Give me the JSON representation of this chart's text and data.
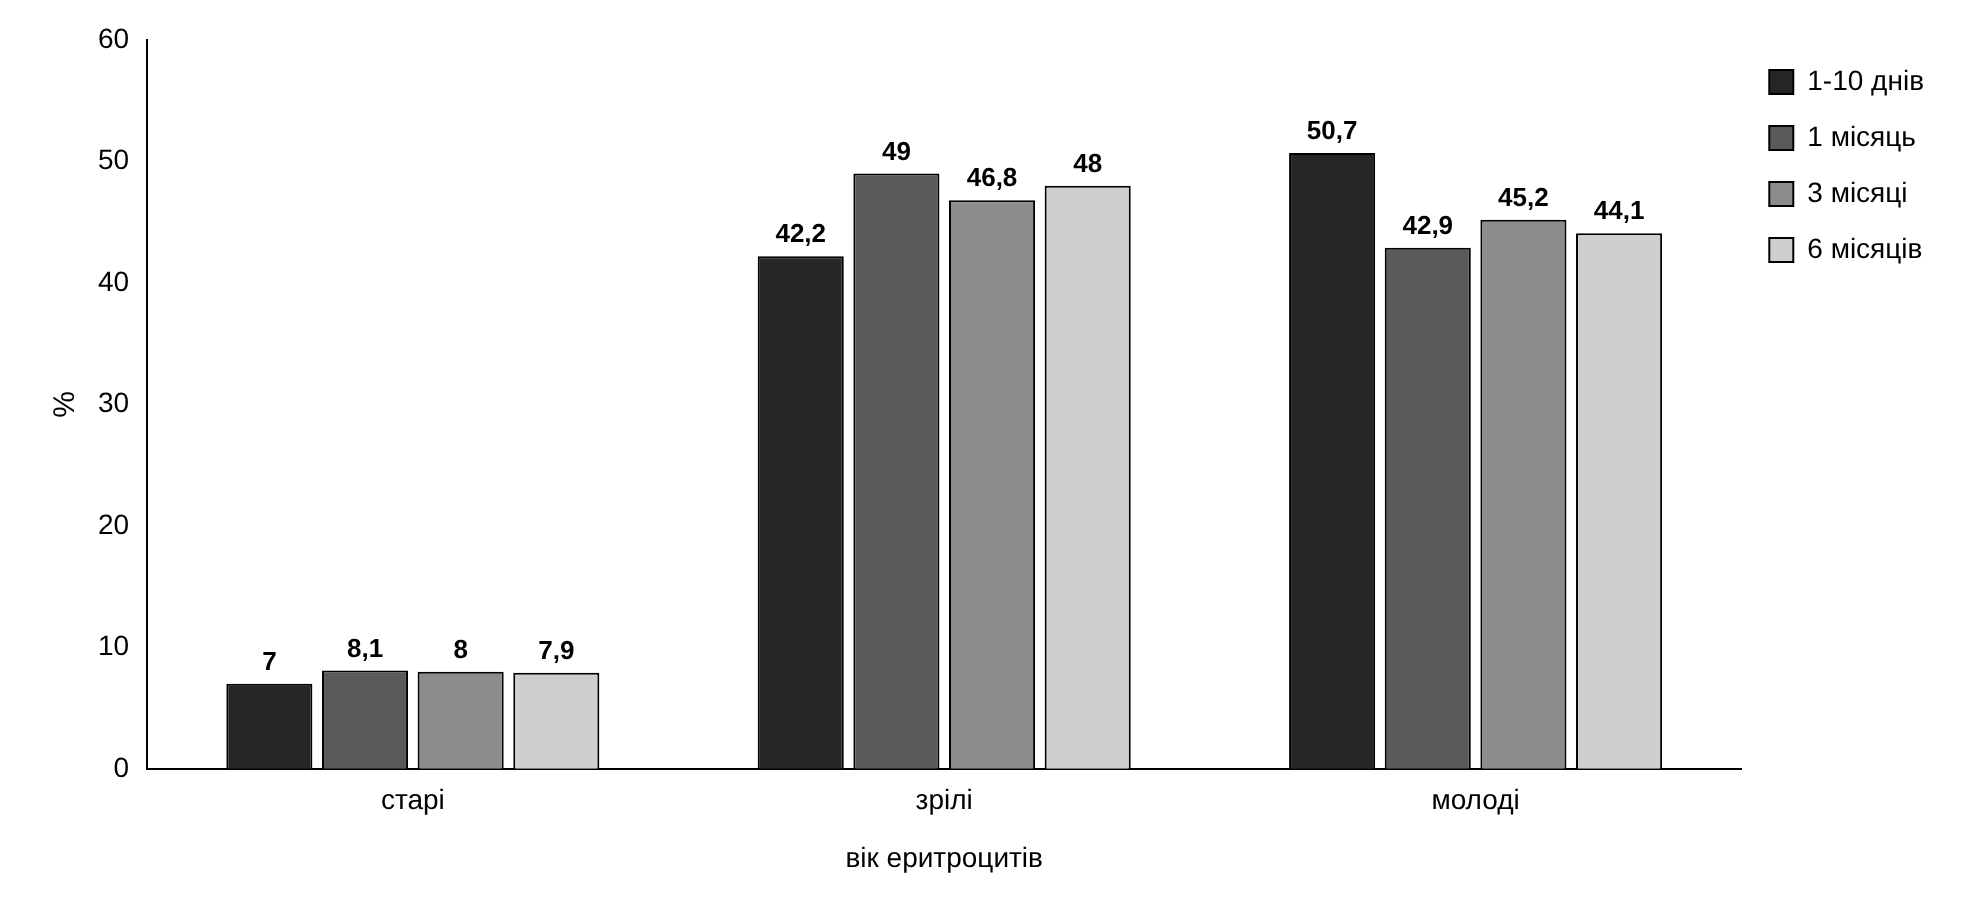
{
  "chart_data": {
    "type": "bar",
    "ylabel": "%",
    "xlabel": "вік еритроцитів",
    "categories": [
      "старі",
      "зрілі",
      "молоді"
    ],
    "series": [
      {
        "name": "1-10 днів",
        "color": "#262626",
        "values": [
          7,
          42.2,
          50.7
        ],
        "value_labels": [
          "7",
          "42,2",
          "50,7"
        ]
      },
      {
        "name": "1 місяць",
        "color": "#5a5a5a",
        "values": [
          8.1,
          49,
          42.9
        ],
        "value_labels": [
          "8,1",
          "49",
          "42,9"
        ]
      },
      {
        "name": "3 місяці",
        "color": "#8c8c8c",
        "values": [
          8,
          46.8,
          45.2
        ],
        "value_labels": [
          "8",
          "46,8",
          "45,2"
        ]
      },
      {
        "name": "6 місяців",
        "color": "#cfcfcf",
        "values": [
          7.9,
          48,
          44.1
        ],
        "value_labels": [
          "7,9",
          "48",
          "44,1"
        ]
      }
    ],
    "ylim": [
      0,
      60
    ],
    "yticks": [
      0,
      10,
      20,
      30,
      40,
      50,
      60
    ],
    "grid": false,
    "legend": "top right"
  }
}
